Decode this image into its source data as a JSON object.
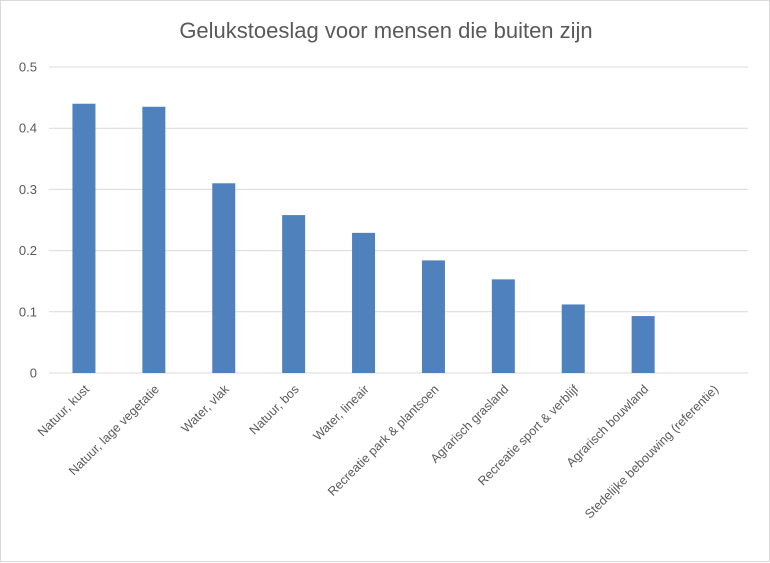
{
  "chart_data": {
    "type": "bar",
    "title": "Gelukstoeslag voor mensen die buiten zijn",
    "xlabel": "",
    "ylabel": "",
    "ylim": [
      0,
      0.5
    ],
    "yticks": [
      0,
      0.1,
      0.2,
      0.3,
      0.4,
      0.5
    ],
    "ytick_labels": [
      "0",
      "0.1",
      "0.2",
      "0.3",
      "0.4",
      "0.5"
    ],
    "grid": true,
    "legend": "none",
    "bar_color": "#4f81bd",
    "categories": [
      "Natuur, kust",
      "Natuur, lage vegetatie",
      "Water, vlak",
      "Natuur, bos",
      "Water, lineair",
      "Recreatie park & plantsoen",
      "Agrarisch grasland",
      "Recreatie sport & verblijf",
      "Agrarisch bouwland",
      "Stedelijke bebouwing (referentie)"
    ],
    "values": [
      0.44,
      0.435,
      0.31,
      0.258,
      0.229,
      0.184,
      0.153,
      0.112,
      0.093,
      0
    ]
  }
}
